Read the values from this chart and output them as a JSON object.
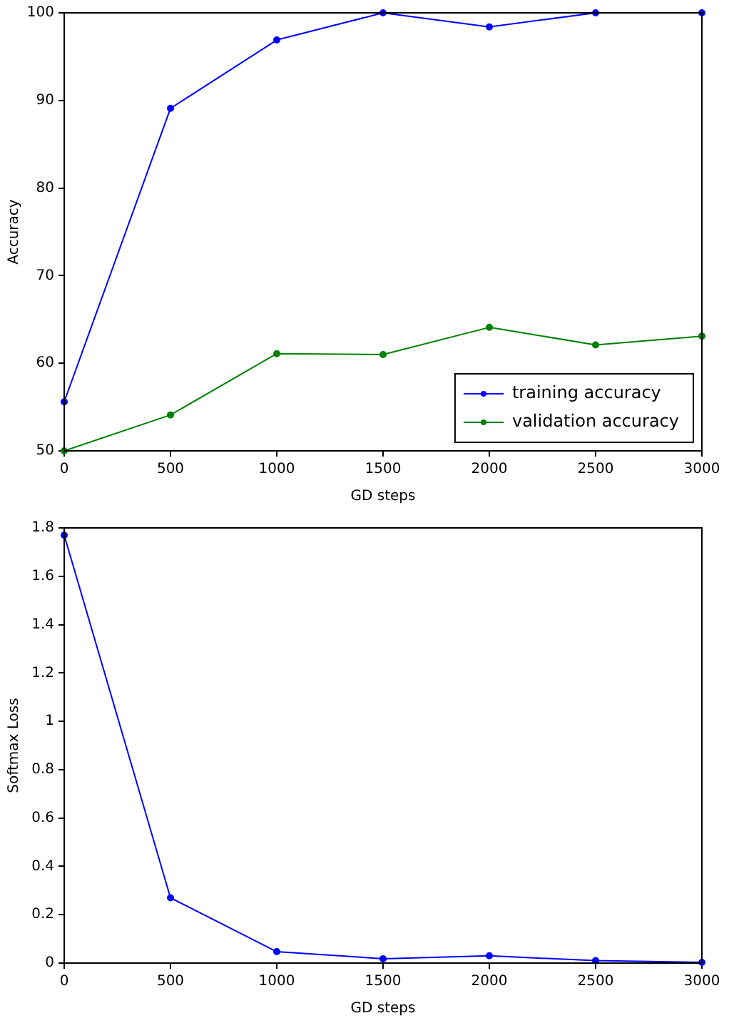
{
  "chart_data": [
    {
      "type": "line",
      "xlabel": "GD steps",
      "ylabel": "Accuracy",
      "x": [
        0,
        500,
        1000,
        1500,
        2000,
        2500,
        3000
      ],
      "xlim": [
        0,
        3000
      ],
      "xticks": [
        0,
        500,
        1000,
        1500,
        2000,
        2500,
        3000
      ],
      "ylim": [
        50,
        100
      ],
      "yticks": [
        50,
        60,
        70,
        80,
        90,
        100
      ],
      "grid": false,
      "legend": "bottom right",
      "marker": "circle",
      "series": [
        {
          "name": "training accuracy",
          "color": "#0000ff",
          "values": [
            55.6,
            89.1,
            96.9,
            100,
            98.4,
            100,
            100
          ]
        },
        {
          "name": "validation accuracy",
          "color": "#008000",
          "values": [
            50,
            54.1,
            61.1,
            61,
            64.1,
            62.1,
            63.1
          ]
        }
      ]
    },
    {
      "type": "line",
      "xlabel": "GD steps",
      "ylabel": "Softmax Loss",
      "x": [
        0,
        500,
        1000,
        1500,
        2000,
        2500,
        3000
      ],
      "xlim": [
        0,
        3000
      ],
      "xticks": [
        0,
        500,
        1000,
        1500,
        2000,
        2500,
        3000
      ],
      "ylim": [
        0,
        1.8
      ],
      "yticks": [
        0,
        0.2,
        0.4,
        0.6,
        0.8,
        1,
        1.2,
        1.4,
        1.6,
        1.8
      ],
      "grid": false,
      "marker": "circle",
      "series": [
        {
          "color": "#0000ff",
          "values": [
            1.77,
            0.27,
            0.047,
            0.018,
            0.03,
            0.01,
            0.003
          ]
        }
      ]
    }
  ]
}
